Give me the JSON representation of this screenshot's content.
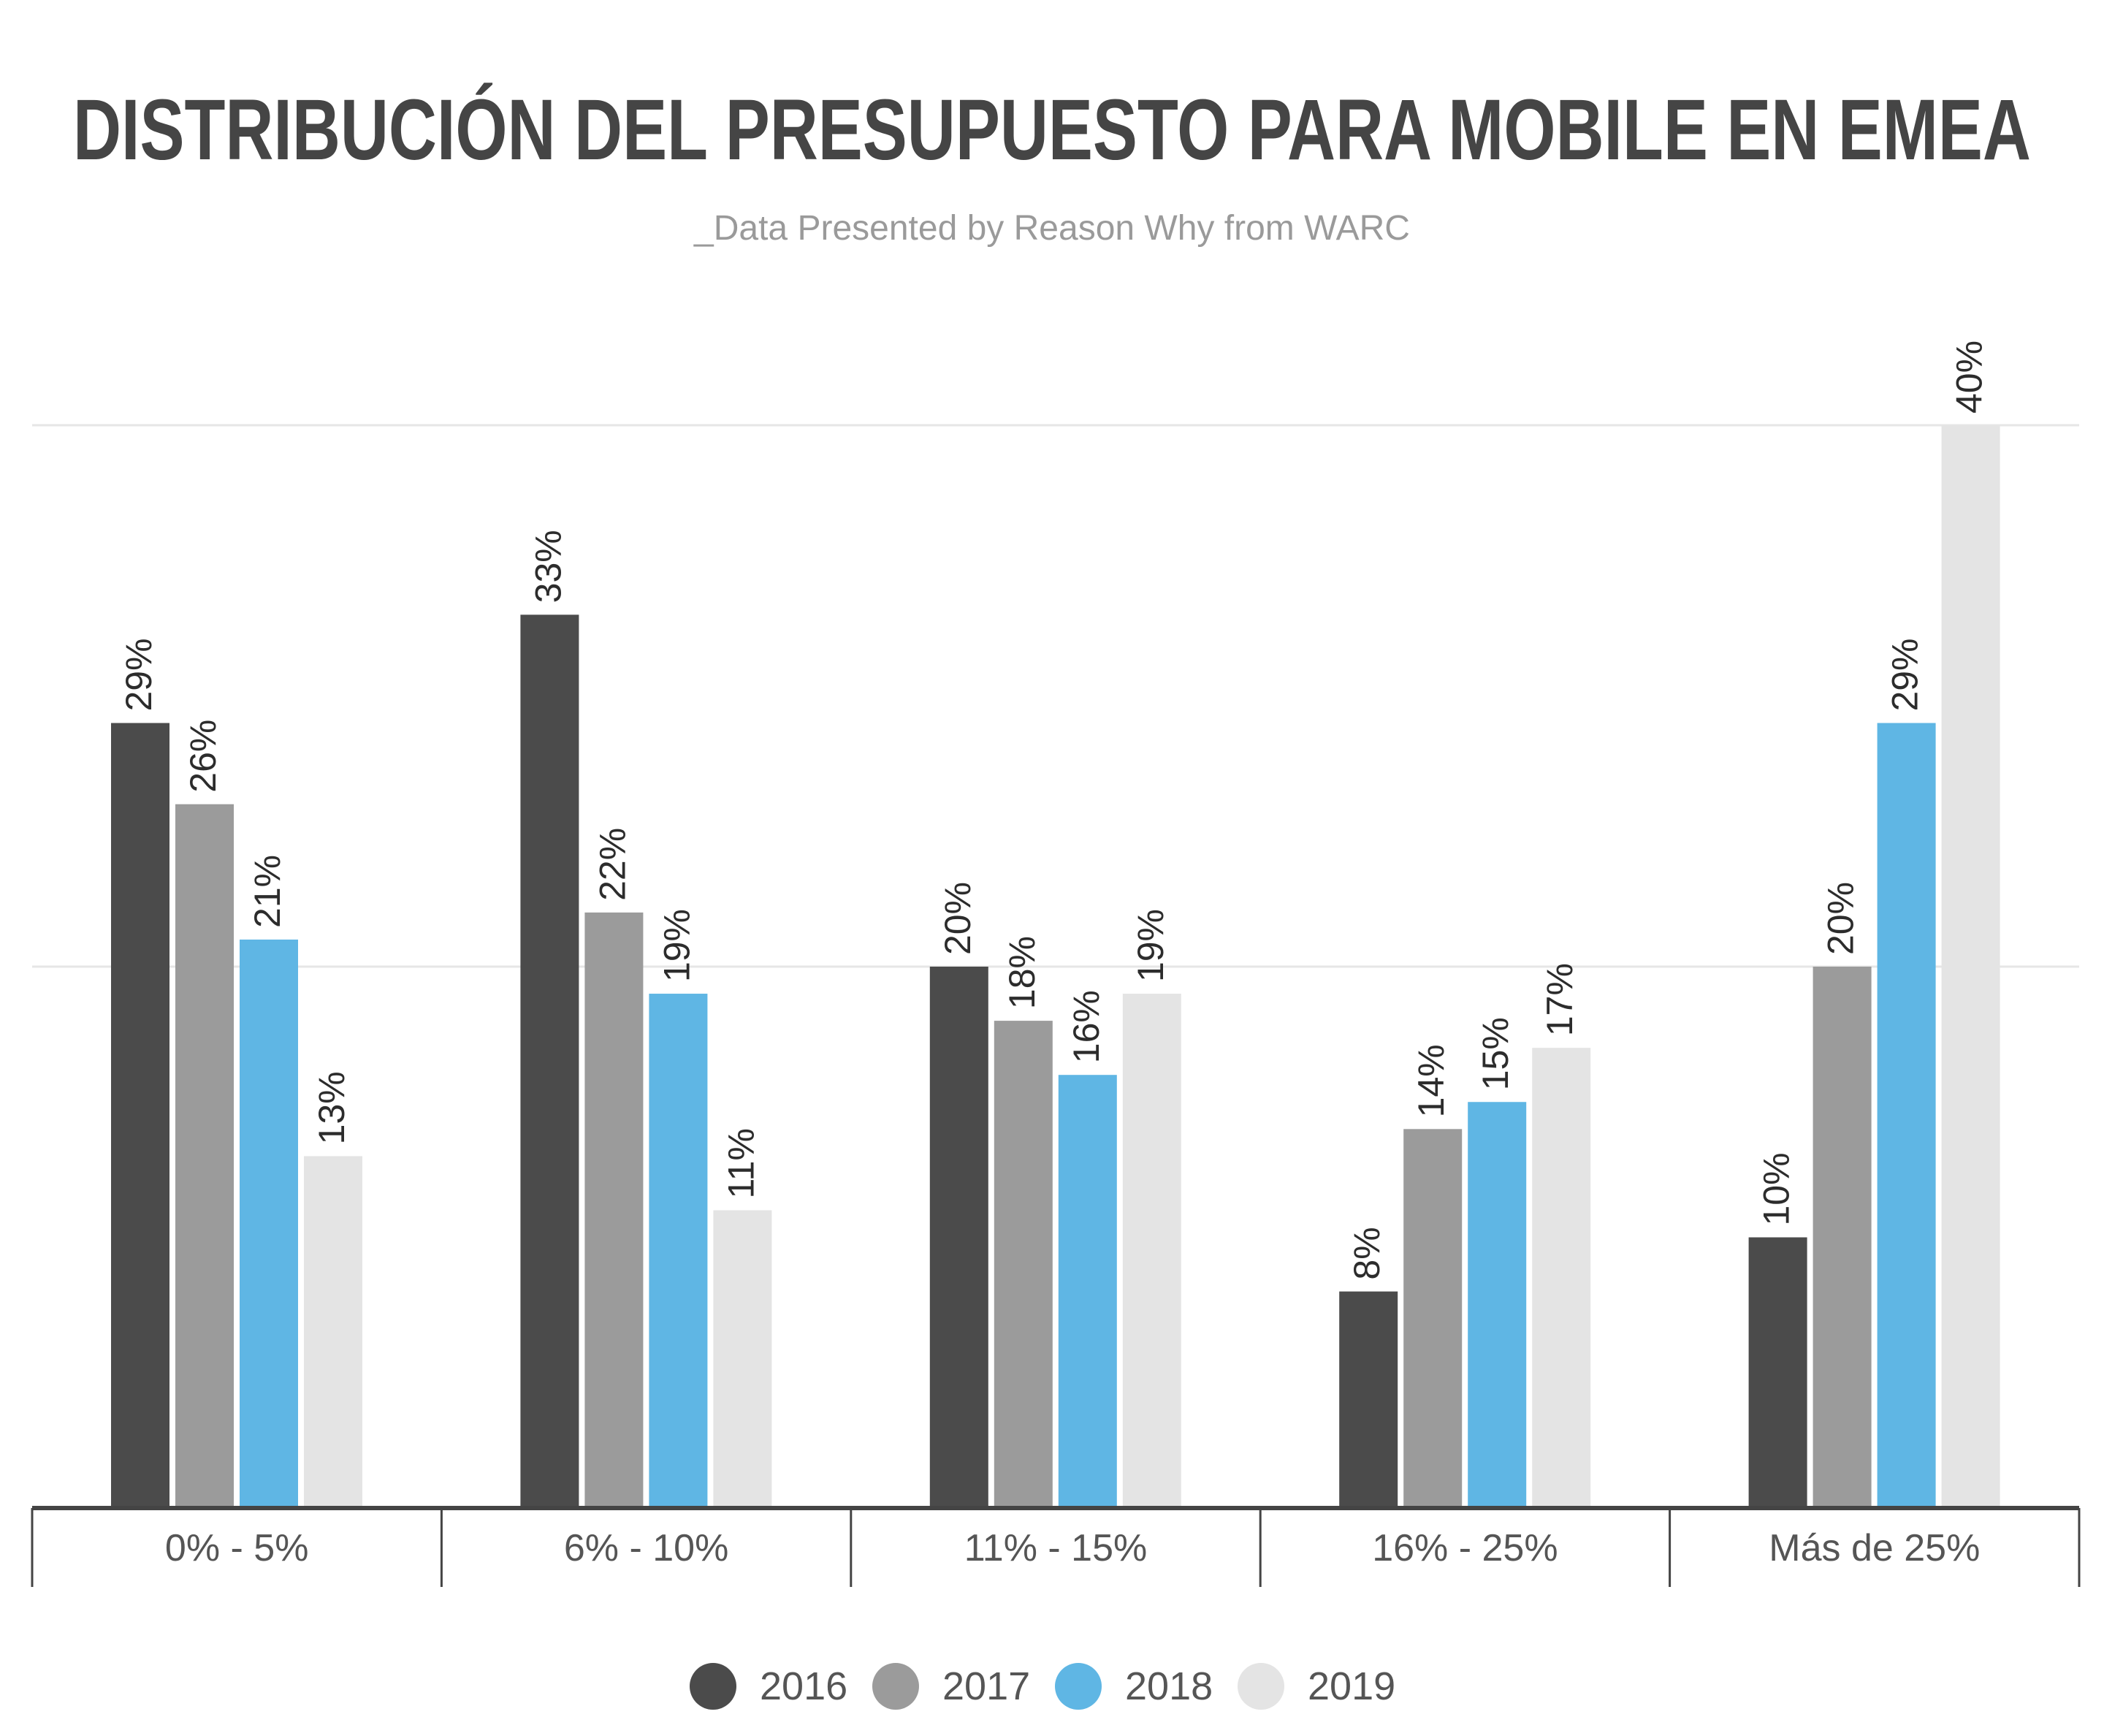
{
  "chart_data": {
    "type": "bar",
    "title": "DISTRIBUCIÓN DEL PRESUPUESTO PARA MOBILE EN EMEA",
    "subtitle": "_Data Presented by Reason Why from WARC",
    "categories": [
      "0% - 5%",
      "6% - 10%",
      "11% - 15%",
      "16% - 25%",
      "Más de 25%"
    ],
    "series": [
      {
        "name": "2016",
        "color": "#4b4b4b",
        "values": [
          29,
          33,
          20,
          8,
          10
        ],
        "labels": [
          "29%",
          "33%",
          "20%",
          "8%",
          "10%"
        ]
      },
      {
        "name": "2017",
        "color": "#9b9b9b",
        "values": [
          26,
          22,
          18,
          14,
          20
        ],
        "labels": [
          "26%",
          "22%",
          "18%",
          "14%",
          "20%"
        ]
      },
      {
        "name": "2018",
        "color": "#5fb6e4",
        "values": [
          21,
          19,
          16,
          15,
          29
        ],
        "labels": [
          "21%",
          "19%",
          "16%",
          "15%",
          "29%"
        ]
      },
      {
        "name": "2019",
        "color": "#e4e4e4",
        "values": [
          13,
          11,
          19,
          17,
          40
        ],
        "labels": [
          "13%",
          "11%",
          "19%",
          "17%",
          "40%"
        ]
      }
    ],
    "ylim": [
      0,
      40
    ],
    "gridlines": [
      20,
      40
    ],
    "grid": true,
    "value_labels": "rotated-vertical",
    "legend": {
      "position": "bottom-center",
      "marker": "circle",
      "entries": [
        "2016",
        "2017",
        "2018",
        "2019"
      ]
    },
    "axis_color": "#444444",
    "grid_color": "#e6e6e6"
  }
}
